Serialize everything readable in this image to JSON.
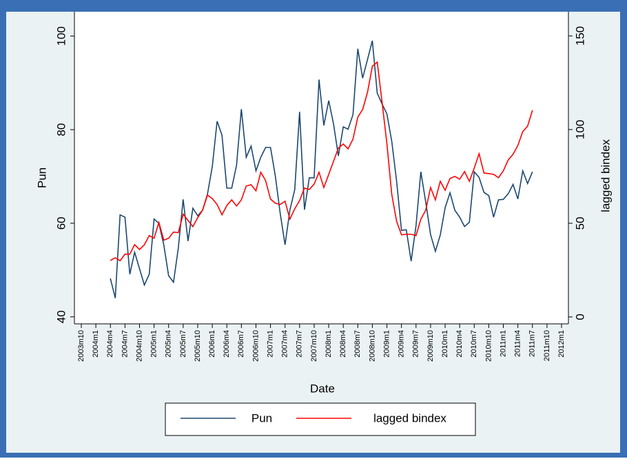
{
  "chart_data": {
    "type": "line",
    "x_label": "Date",
    "y_label": "Pun",
    "y2_label": "lagged bindex",
    "categories": [
      "2003m10",
      null,
      null,
      "2004m1",
      null,
      null,
      "2004m4",
      null,
      null,
      "2004m7",
      null,
      null,
      "2004m10",
      null,
      null,
      "2005m1",
      null,
      null,
      "2005m4",
      null,
      null,
      "2005m7",
      null,
      null,
      "2005m10",
      null,
      null,
      "2006m1",
      null,
      null,
      "2006m4",
      null,
      null,
      "2006m7",
      null,
      null,
      "2006m10",
      null,
      null,
      "2007m1",
      null,
      null,
      "2007m4",
      null,
      null,
      "2007m7",
      null,
      null,
      "2007m10",
      null,
      null,
      "2008m1",
      null,
      null,
      "2008m4",
      null,
      null,
      "2008m7",
      null,
      null,
      "2008m10",
      null,
      null,
      "2009m1",
      null,
      null,
      "2009m4",
      null,
      null,
      "2009m7",
      null,
      null,
      "2009m10",
      null,
      null,
      "2010m1",
      null,
      null,
      "2010m4",
      null,
      null,
      "2010m7",
      null,
      null,
      "2010m10",
      null,
      null,
      "2011m1",
      null,
      null,
      "2011m4",
      null,
      null,
      "2011m7",
      null,
      null,
      "2011m10",
      null,
      null,
      "2012m1"
    ],
    "series": [
      {
        "name": "Pun",
        "color": "#1a476f",
        "values": [
          null,
          null,
          null,
          null,
          null,
          null,
          48.2,
          44,
          61.8,
          61.3,
          49.1,
          53.8,
          50.3,
          46.8,
          49.1,
          60.9,
          60,
          55.4,
          48.8,
          47.4,
          54.7,
          65.1,
          56.2,
          63.2,
          61.6,
          62.8,
          66.2,
          72.1,
          81.8,
          78.8,
          67.5,
          67.5,
          72.4,
          84.4,
          74.1,
          76.5,
          71.2,
          74.1,
          76.2,
          76.2,
          70.1,
          62.1,
          55.4,
          62.8,
          67.2,
          83.8,
          62.9,
          69.7,
          69.7,
          90.7,
          80.9,
          86.2,
          81.2,
          74.4,
          80.6,
          80.1,
          83.2,
          97.3,
          91,
          95,
          99,
          87.8,
          85.5,
          83.4,
          77.5,
          69,
          58.5,
          58.6,
          51.9,
          59.5,
          71,
          64.5,
          57.6,
          54,
          57.5,
          63.3,
          66.5,
          62.8,
          61.3,
          59.3,
          60.2,
          71,
          69.8,
          66.6,
          65.9,
          61.3,
          65,
          65.1,
          66.3,
          68.3,
          65.2,
          71.2,
          68.5,
          71,
          null,
          null,
          null,
          null,
          null,
          null
        ]
      },
      {
        "name": "lagged bindex",
        "color": "#ff0000",
        "axis": "y2",
        "values": [
          null,
          null,
          null,
          null,
          null,
          null,
          30.1,
          31.6,
          30,
          33.5,
          33.5,
          38.6,
          36,
          38.5,
          43.4,
          42,
          50.4,
          41,
          42,
          45.3,
          45,
          54.8,
          51.5,
          48.2,
          53,
          57,
          65,
          63.2,
          60,
          54.5,
          59.5,
          62.5,
          59.2,
          62.5,
          69.9,
          70.6,
          67.3,
          77.2,
          72.8,
          62.9,
          60.7,
          60,
          61.8,
          52.2,
          57.7,
          62.1,
          68.8,
          68,
          70.9,
          77.2,
          69.1,
          76.1,
          83.1,
          90.1,
          92.3,
          89.7,
          94.9,
          106.6,
          110.7,
          119.9,
          133.8,
          136,
          114.7,
          92.6,
          65.4,
          51.1,
          43.8,
          44.1,
          44.1,
          43.4,
          52.2,
          57,
          69.1,
          62.5,
          72.4,
          67.6,
          73.9,
          75,
          73.5,
          77.6,
          72.4,
          79.4,
          87.1,
          76.8,
          76.5,
          76.1,
          74.3,
          78,
          83.8,
          86.8,
          91.5,
          98.9,
          101.8,
          110.3,
          null,
          null,
          null,
          null,
          null,
          null
        ]
      }
    ],
    "ylim": [
      38.5,
      105.2
    ],
    "yticks": [
      40,
      60,
      80,
      100
    ],
    "y2lim": [
      -3.7,
      162.9
    ],
    "y2ticks": [
      0,
      50,
      100,
      150
    ],
    "grid": false,
    "legend": "bottom"
  }
}
